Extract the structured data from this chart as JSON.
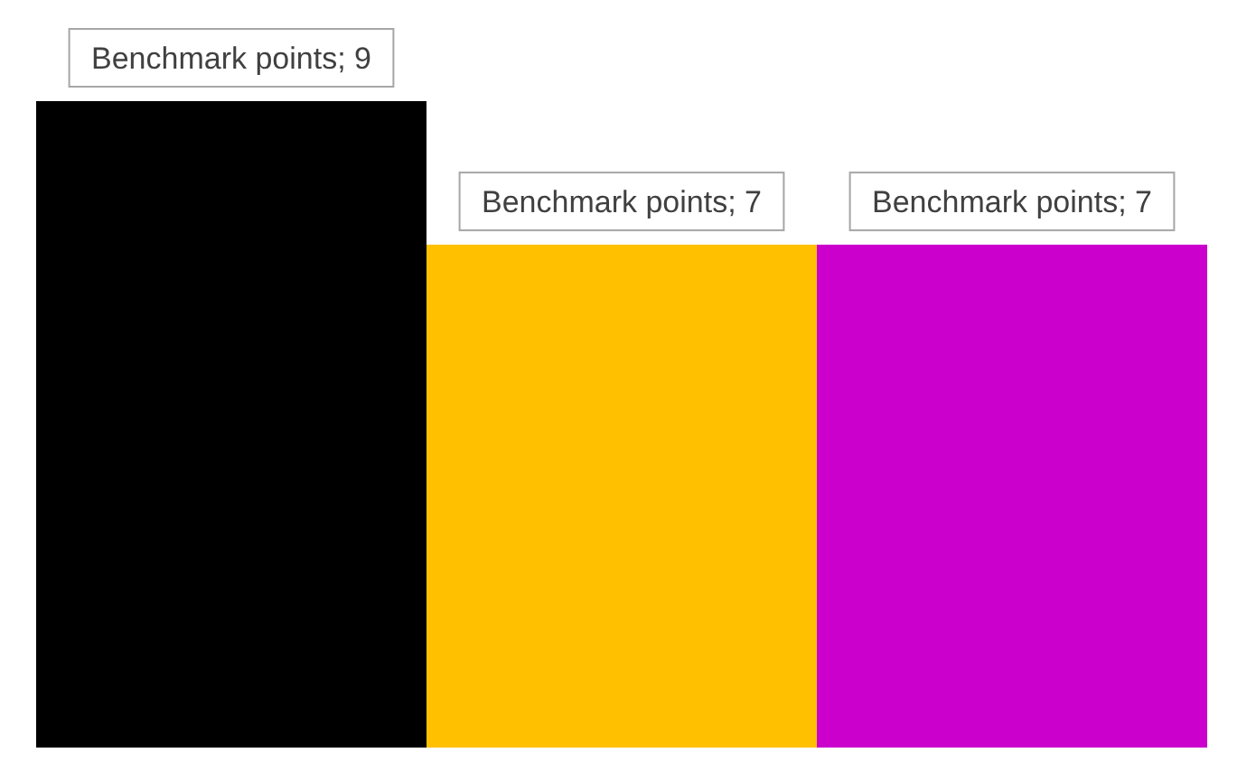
{
  "chart_data": {
    "type": "bar",
    "categories": [
      null,
      null,
      null
    ],
    "values": [
      9,
      7,
      7
    ],
    "colors": [
      "#000000",
      "#ffc000",
      "#cc00cc"
    ],
    "value_labels": [
      "Benchmark points; 9",
      "Benchmark points; 7",
      "Benchmark points; 7"
    ]
  }
}
